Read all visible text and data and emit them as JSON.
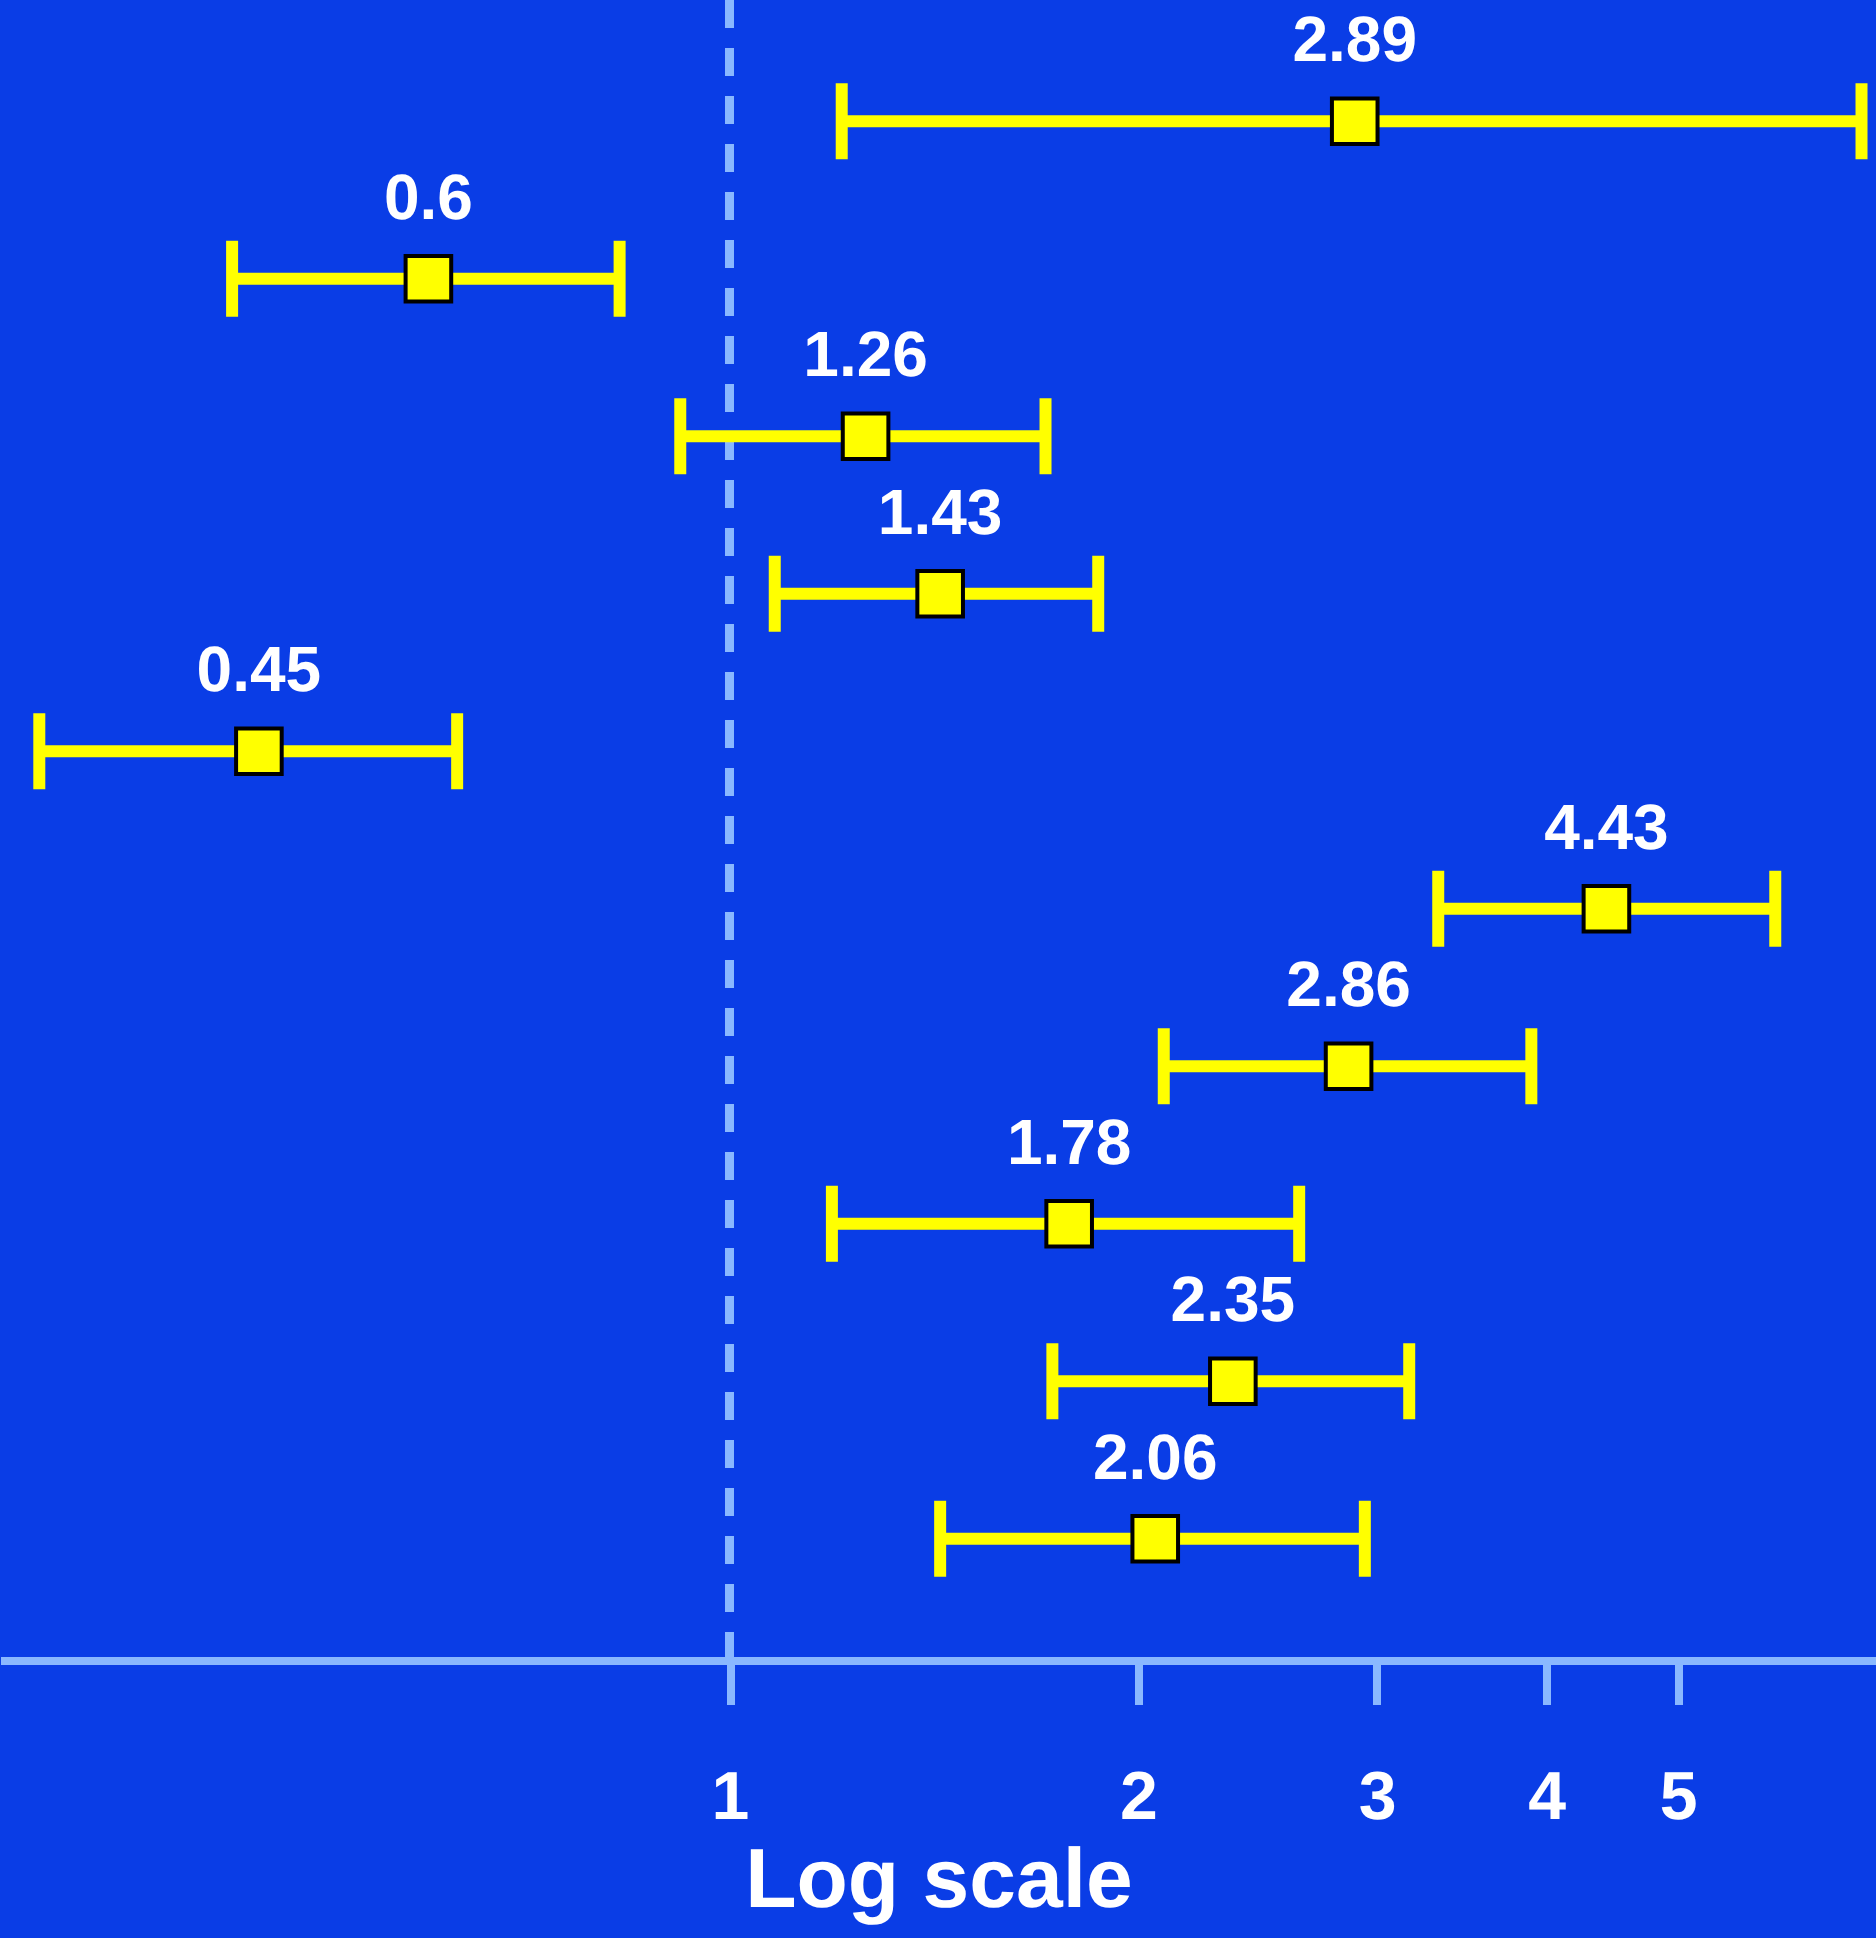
{
  "chart_data": {
    "type": "scatter",
    "orientation": "horizontal",
    "xlabel": "Log scale",
    "categories": [
      null,
      null,
      null,
      null,
      null,
      null,
      null,
      null,
      null,
      null
    ],
    "values": [
      2.89,
      0.6,
      1.26,
      1.43,
      0.45,
      4.43,
      2.86,
      1.78,
      2.35,
      2.06
    ],
    "errors": [
      [
        1.21,
        6.83
      ],
      [
        0.43,
        0.83
      ],
      [
        0.92,
        1.71
      ],
      [
        1.08,
        1.87
      ],
      [
        0.31,
        0.63
      ],
      [
        3.33,
        5.9
      ],
      [
        2.09,
        3.9
      ],
      [
        1.19,
        2.63
      ],
      [
        1.73,
        3.17
      ],
      [
        1.43,
        2.94
      ]
    ],
    "color": "#ffff00",
    "marker": "square",
    "data_labels": true,
    "log": "x",
    "grid": false,
    "xlim": [
      0.29,
      7
    ],
    "xticks": [
      1,
      2,
      3,
      4,
      5
    ],
    "ref_lines": [
      {
        "axis": "x",
        "value": 1,
        "color": "#8ab8ff",
        "line_style": "dashed"
      }
    ]
  }
}
